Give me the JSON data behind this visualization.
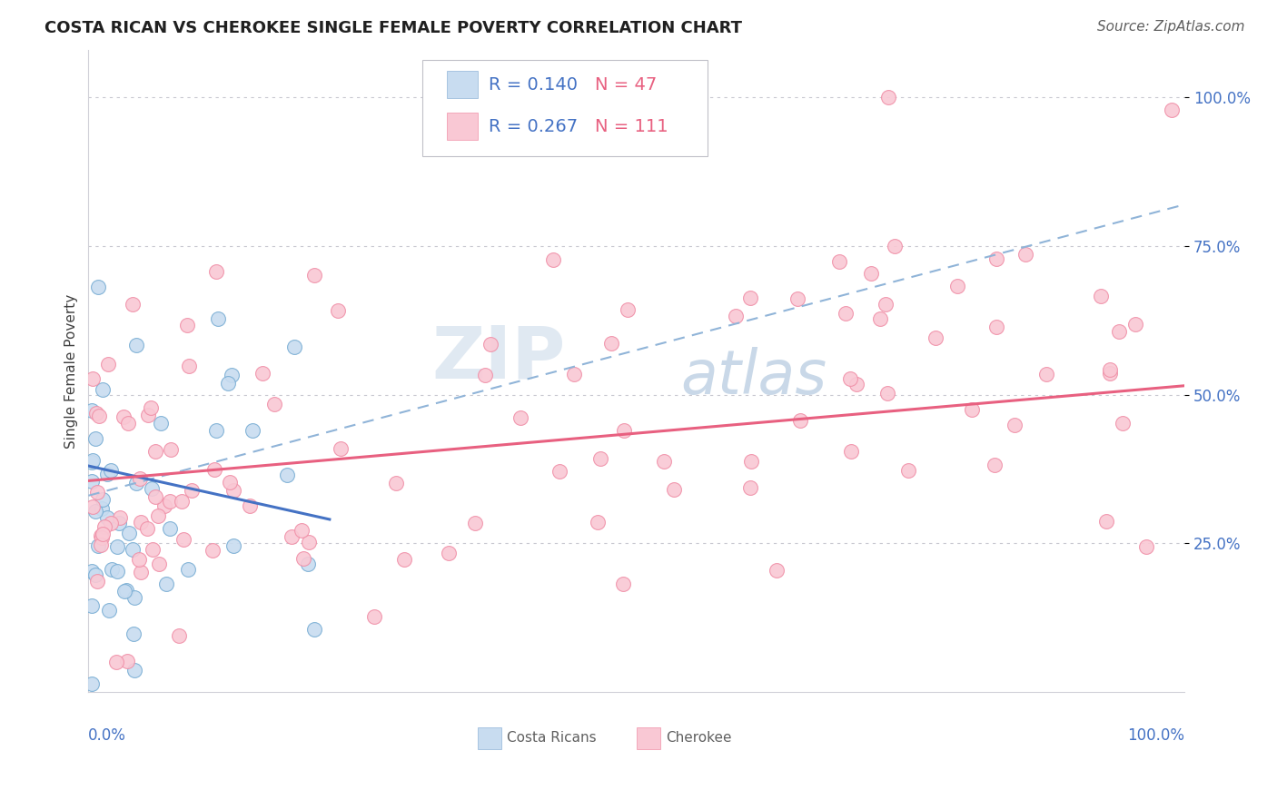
{
  "title": "COSTA RICAN VS CHEROKEE SINGLE FEMALE POVERTY CORRELATION CHART",
  "source_text": "Source: ZipAtlas.com",
  "ylabel": "Single Female Poverty",
  "y_tick_labels": [
    "100.0%",
    "75.0%",
    "50.0%",
    "25.0%"
  ],
  "y_tick_positions": [
    1.0,
    0.75,
    0.5,
    0.25
  ],
  "legend_r1": "R = 0.140",
  "legend_n1": "N = 47",
  "legend_r2": "R = 0.267",
  "legend_n2": "N = 111",
  "watermark_zip": "ZIP",
  "watermark_atlas": "atlas",
  "costa_rican_fill": "#c8dcf0",
  "costa_rican_edge": "#7aaed4",
  "cherokee_fill": "#f9c8d4",
  "cherokee_edge": "#f090a8",
  "costa_rican_line_color": "#4472c4",
  "cherokee_line_color": "#e86080",
  "dashed_line_color": "#90b4d8",
  "title_color": "#202020",
  "source_color": "#606060",
  "axis_tick_color": "#4472c4",
  "ylabel_color": "#404040",
  "legend_r_color": "#4472c4",
  "legend_n_color": "#e86080",
  "bottom_legend_color": "#606060",
  "background_color": "#ffffff",
  "grid_color": "#c8c8d0",
  "title_fontsize": 13,
  "source_fontsize": 11,
  "axis_label_fontsize": 11,
  "tick_fontsize": 12,
  "legend_fontsize": 14,
  "watermark_zip_fontsize": 58,
  "watermark_atlas_fontsize": 48
}
